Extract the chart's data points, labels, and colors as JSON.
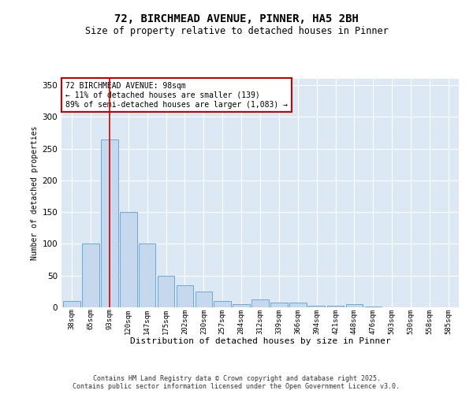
{
  "title_line1": "72, BIRCHMEAD AVENUE, PINNER, HA5 2BH",
  "title_line2": "Size of property relative to detached houses in Pinner",
  "xlabel": "Distribution of detached houses by size in Pinner",
  "ylabel": "Number of detached properties",
  "fig_background": "#ffffff",
  "plot_background": "#dce9f5",
  "bar_color": "#c5d8ee",
  "bar_edge_color": "#6aaad4",
  "categories": [
    "38sqm",
    "65sqm",
    "93sqm",
    "120sqm",
    "147sqm",
    "175sqm",
    "202sqm",
    "230sqm",
    "257sqm",
    "284sqm",
    "312sqm",
    "339sqm",
    "366sqm",
    "394sqm",
    "421sqm",
    "448sqm",
    "476sqm",
    "503sqm",
    "530sqm",
    "558sqm",
    "585sqm"
  ],
  "values": [
    10,
    100,
    265,
    150,
    100,
    50,
    35,
    25,
    10,
    5,
    12,
    8,
    8,
    2,
    2,
    5,
    1,
    0,
    0,
    0,
    0
  ],
  "ylim": [
    0,
    360
  ],
  "yticks": [
    0,
    50,
    100,
    150,
    200,
    250,
    300,
    350
  ],
  "vline_x_index": 2,
  "vline_color": "#cc0000",
  "annotation_text": "72 BIRCHMEAD AVENUE: 98sqm\n← 11% of detached houses are smaller (139)\n89% of semi-detached houses are larger (1,083) →",
  "annotation_box_facecolor": "#ffffff",
  "annotation_box_edgecolor": "#cc0000",
  "footer": "Contains HM Land Registry data © Crown copyright and database right 2025.\nContains public sector information licensed under the Open Government Licence v3.0."
}
